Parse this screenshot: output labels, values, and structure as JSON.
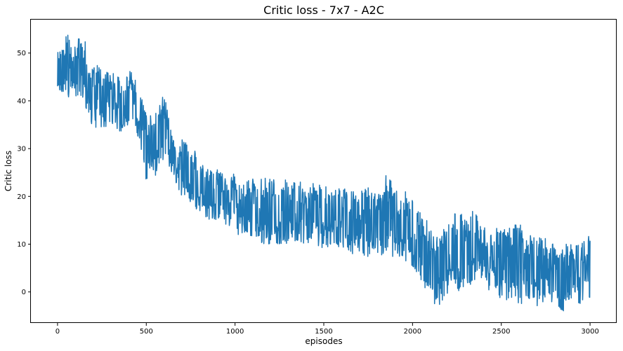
{
  "chart_data": {
    "type": "line",
    "title": "Critic loss - 7x7 - A2C",
    "xlabel": "episodes",
    "ylabel": "Critic loss",
    "xlim": [
      -150,
      3150
    ],
    "ylim": [
      -6.5,
      57
    ],
    "xticks": [
      0,
      500,
      1000,
      1500,
      2000,
      2500,
      3000
    ],
    "yticks": [
      0,
      10,
      20,
      30,
      40,
      50
    ],
    "grid": false,
    "series": [
      {
        "color": "#1f77b4",
        "x": [
          0,
          50,
          100,
          150,
          200,
          250,
          300,
          350,
          400,
          450,
          500,
          550,
          600,
          650,
          700,
          750,
          800,
          850,
          900,
          950,
          1000,
          1050,
          1100,
          1150,
          1200,
          1250,
          1300,
          1350,
          1400,
          1450,
          1500,
          1550,
          1600,
          1650,
          1700,
          1750,
          1800,
          1850,
          1900,
          1950,
          2000,
          2050,
          2100,
          2150,
          2200,
          2250,
          2300,
          2350,
          2400,
          2450,
          2500,
          2550,
          2600,
          2650,
          2700,
          2750,
          2800,
          2850,
          2900,
          2950,
          3000
        ],
        "upper": [
          50,
          54,
          53,
          53,
          48,
          47,
          46,
          45,
          47,
          44,
          37,
          37,
          42,
          33,
          32,
          32,
          27,
          26,
          26,
          25,
          25,
          24,
          24,
          24,
          24,
          23,
          24,
          23,
          23,
          23,
          23,
          21,
          22,
          21,
          21,
          22,
          21,
          25,
          22,
          22,
          20,
          18,
          13,
          11,
          15,
          17,
          17,
          17,
          14,
          14,
          14,
          14,
          15,
          13,
          12,
          12,
          10,
          10,
          10,
          10,
          12
        ],
        "lower": [
          40,
          41,
          40,
          39,
          34,
          34,
          35,
          33,
          35,
          33,
          23,
          24,
          28,
          24,
          20,
          18,
          17,
          15,
          15,
          14,
          12,
          12,
          11,
          10,
          10,
          10,
          10,
          10,
          10,
          10,
          9,
          10,
          9,
          8,
          8,
          7,
          8,
          6,
          7,
          6,
          5,
          2,
          -2,
          -3,
          -1,
          0,
          1,
          2,
          1,
          0,
          -2,
          -4,
          -3,
          -2,
          -3,
          -2,
          -3,
          -4,
          -3,
          -3,
          -2
        ]
      }
    ]
  }
}
